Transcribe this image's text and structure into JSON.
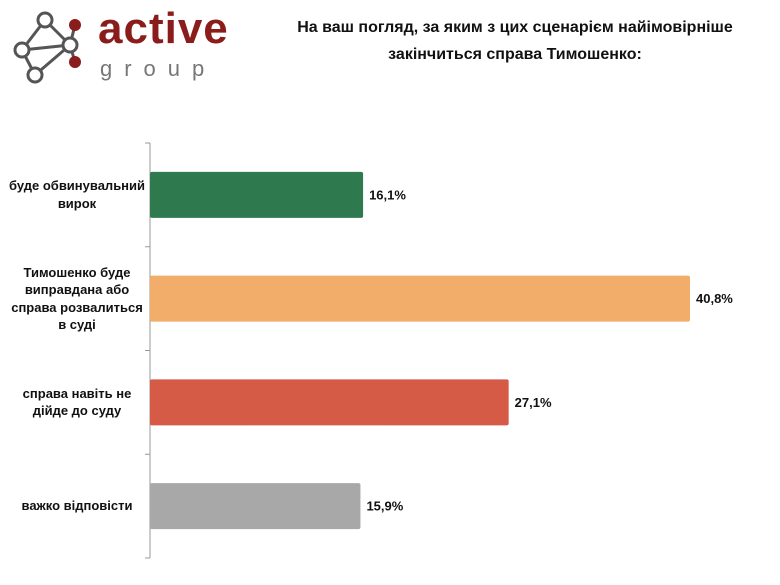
{
  "logo": {
    "name": "active",
    "subname": "group"
  },
  "chart_data": {
    "type": "hbar",
    "title": "На ваш погляд, за яким з цих сценарієм найімовірніше закінчиться справа Тимошенко:",
    "categories": [
      "буде обвинувальний вирок",
      "Тимошенко буде виправдана або справа розвалиться в суді",
      "справа навіть не дійде до суду",
      "важко відповісти"
    ],
    "values": [
      16.1,
      40.8,
      27.1,
      15.9
    ],
    "value_labels": [
      "16,1%",
      "40,8%",
      "27,1%",
      "15,9%"
    ],
    "colors": [
      "#2e7a4e",
      "#f2ad6a",
      "#d65b47",
      "#a8a8a8"
    ]
  }
}
